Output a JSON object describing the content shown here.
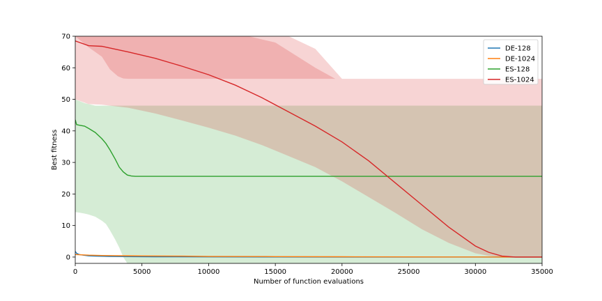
{
  "chart_data": {
    "type": "line",
    "title": "",
    "xlabel": "Number of function evaluations",
    "ylabel": "Best fitness",
    "xlim": [
      0,
      35000
    ],
    "ylim": [
      -2,
      70
    ],
    "xticks": [
      0,
      5000,
      10000,
      15000,
      20000,
      25000,
      30000,
      35000
    ],
    "yticks": [
      0,
      10,
      20,
      30,
      40,
      50,
      60,
      70
    ],
    "grid": false,
    "legend_position": "top-right",
    "series": [
      {
        "name": "DE-128",
        "color": "#1f77b4",
        "x": [
          0,
          100,
          300,
          600,
          1000,
          1500,
          2500,
          4000,
          6000,
          10000,
          15000,
          20000,
          25000,
          30000,
          35000
        ],
        "y": [
          1.8,
          1.2,
          0.8,
          0.6,
          0.4,
          0.3,
          0.2,
          0.15,
          0.1,
          0.05,
          0.02,
          0.01,
          0.0,
          0.0,
          0.0
        ]
      },
      {
        "name": "DE-1024",
        "color": "#ff7f0e",
        "x": [
          0,
          1000,
          2000,
          3000,
          4000,
          5000,
          8000,
          10000,
          15000,
          20000,
          25000,
          30000,
          35000
        ],
        "y": [
          0.8,
          0.6,
          0.5,
          0.45,
          0.4,
          0.35,
          0.3,
          0.2,
          0.15,
          0.1,
          0.05,
          0.02,
          0.0
        ]
      },
      {
        "name": "ES-128",
        "color": "#2ca02c",
        "x": [
          0,
          100,
          300,
          700,
          1000,
          1500,
          2000,
          2300,
          2600,
          3000,
          3300,
          3600,
          3900,
          4200,
          4500,
          6000,
          10000,
          20000,
          30000,
          35000
        ],
        "y": [
          43.5,
          42.0,
          41.8,
          41.5,
          40.8,
          39.5,
          37.5,
          36.0,
          34.0,
          31.0,
          28.5,
          27.0,
          26.0,
          25.7,
          25.6,
          25.6,
          25.6,
          25.6,
          25.6,
          25.6
        ],
        "band_lower": [
          14.3,
          14.2,
          14.1,
          13.8,
          13.5,
          12.8,
          11.5,
          10.5,
          8.5,
          5.5,
          3.0,
          0.0,
          -2.0,
          -2.0,
          -2.0,
          -2.0,
          -2.0,
          -2.0,
          -2.0,
          -2.0
        ],
        "band_upper": [
          50.0,
          49.8,
          49.5,
          48.8,
          48.5,
          48.0,
          48.0,
          48.0,
          48.0,
          48.0,
          48.0,
          48.0,
          48.0,
          48.0,
          48.0,
          48.0,
          48.0,
          48.0,
          48.0,
          48.0
        ]
      },
      {
        "name": "ES-1024",
        "color": "#d62728",
        "x": [
          0,
          1000,
          2000,
          4000,
          6000,
          8000,
          10000,
          12000,
          14000,
          16000,
          18000,
          20000,
          22000,
          24000,
          26000,
          28000,
          30000,
          31000,
          32000,
          33000,
          35000
        ],
        "y": [
          68.5,
          67.0,
          66.8,
          65.0,
          63.0,
          60.5,
          57.8,
          54.5,
          50.5,
          46.0,
          41.5,
          36.5,
          30.5,
          23.5,
          16.5,
          9.5,
          3.5,
          1.5,
          0.3,
          0.0,
          0.0
        ],
        "band_lower": [
          50.0,
          48.5,
          48.3,
          47.3,
          45.5,
          43.3,
          41.0,
          38.5,
          35.5,
          32.0,
          28.5,
          24.0,
          19.0,
          14.0,
          8.8,
          4.5,
          1.2,
          0.4,
          0.1,
          0.0,
          0.0
        ],
        "band_upper": [
          70.0,
          70.0,
          70.0,
          70.0,
          70.0,
          70.0,
          70.0,
          70.0,
          70.0,
          70.0,
          66.0,
          56.5,
          56.5,
          56.5,
          56.5,
          56.5,
          56.5,
          56.5,
          56.5,
          56.5,
          56.5
        ]
      }
    ],
    "bands_pink_top": {
      "color": "#d62728",
      "x": [
        0,
        1000,
        2000,
        2600,
        3200,
        3600,
        4000,
        10000,
        13000,
        15000,
        16500,
        18000,
        19500,
        20500
      ],
      "upper": [
        70.0,
        70.0,
        70.0,
        70.0,
        70.0,
        70.0,
        70.0,
        70.0,
        70.0,
        68.0,
        64.0,
        60.0,
        56.5,
        56.5
      ],
      "lower": [
        70.0,
        66.5,
        63.5,
        59.5,
        57.3,
        56.6,
        56.5,
        56.5,
        56.5,
        56.5,
        56.5,
        56.5,
        56.5,
        56.5
      ]
    }
  }
}
